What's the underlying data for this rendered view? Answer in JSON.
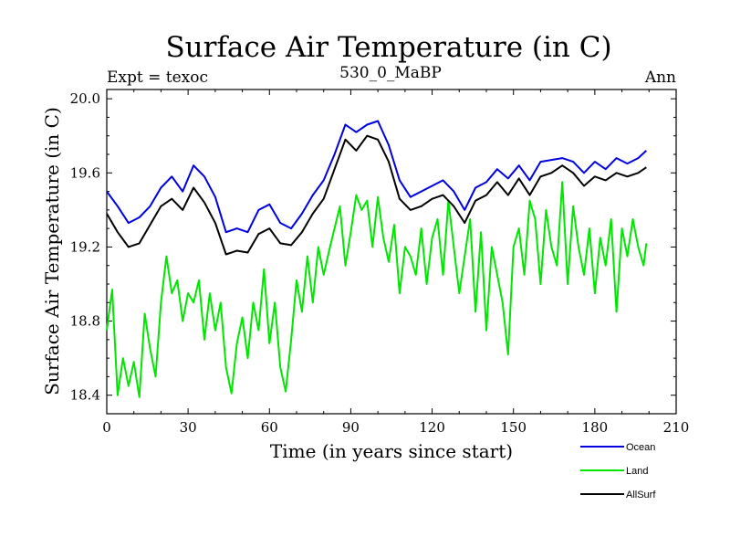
{
  "chart_data": {
    "type": "line",
    "title": "Surface Air Temperature (in C)",
    "subtitle_left": "Expt = texoc",
    "subtitle_center": "530_0_MaBP",
    "subtitle_right": "Ann",
    "xlabel": "Time (in years since start)",
    "ylabel": "Surface Air Temperature (in C)",
    "xlim": [
      0,
      210
    ],
    "ylim": [
      18.3,
      20.05
    ],
    "xticks": [
      0,
      30,
      60,
      90,
      120,
      150,
      180,
      210
    ],
    "xtick_labels": [
      "0",
      "30",
      "60",
      "90",
      "120",
      "150",
      "180",
      "210"
    ],
    "yticks": [
      18.4,
      18.8,
      19.2,
      19.6,
      20.0
    ],
    "ytick_labels": [
      "18.4",
      "18.8",
      "19.2",
      "19.6",
      "20.0"
    ],
    "legend_position": "bottom-right, outside plot",
    "series": [
      {
        "name": "Ocean",
        "color": "#0000e0",
        "x": [
          0,
          4,
          8,
          12,
          16,
          20,
          24,
          28,
          32,
          36,
          40,
          44,
          48,
          52,
          56,
          60,
          64,
          68,
          72,
          76,
          80,
          84,
          88,
          92,
          96,
          100,
          104,
          108,
          112,
          116,
          120,
          124,
          128,
          132,
          136,
          140,
          144,
          148,
          152,
          156,
          160,
          164,
          168,
          172,
          176,
          180,
          184,
          188,
          192,
          196,
          199
        ],
        "values": [
          19.5,
          19.42,
          19.33,
          19.36,
          19.42,
          19.52,
          19.58,
          19.5,
          19.64,
          19.58,
          19.47,
          19.28,
          19.3,
          19.28,
          19.4,
          19.43,
          19.33,
          19.3,
          19.38,
          19.48,
          19.56,
          19.7,
          19.86,
          19.82,
          19.86,
          19.88,
          19.75,
          19.56,
          19.47,
          19.5,
          19.53,
          19.56,
          19.5,
          19.4,
          19.52,
          19.55,
          19.62,
          19.57,
          19.64,
          19.56,
          19.66,
          19.67,
          19.68,
          19.66,
          19.6,
          19.66,
          19.62,
          19.68,
          19.65,
          19.68,
          19.72
        ]
      },
      {
        "name": "Land",
        "color": "#00e600",
        "x": [
          0,
          2,
          4,
          6,
          8,
          10,
          12,
          14,
          16,
          18,
          20,
          22,
          24,
          26,
          28,
          30,
          32,
          34,
          36,
          38,
          40,
          42,
          44,
          46,
          48,
          50,
          52,
          54,
          56,
          58,
          60,
          62,
          64,
          66,
          68,
          70,
          72,
          74,
          76,
          78,
          80,
          82,
          84,
          86,
          88,
          90,
          92,
          94,
          96,
          98,
          100,
          102,
          104,
          106,
          108,
          110,
          112,
          114,
          116,
          118,
          120,
          122,
          124,
          126,
          128,
          130,
          132,
          134,
          136,
          138,
          140,
          142,
          144,
          146,
          148,
          150,
          152,
          154,
          156,
          158,
          160,
          162,
          164,
          166,
          168,
          170,
          172,
          174,
          176,
          178,
          180,
          182,
          184,
          186,
          188,
          190,
          192,
          194,
          196,
          198,
          199
        ],
        "values": [
          18.75,
          18.97,
          18.4,
          18.6,
          18.45,
          18.58,
          18.39,
          18.84,
          18.65,
          18.5,
          18.9,
          19.15,
          18.95,
          19.02,
          18.8,
          18.95,
          18.9,
          19.02,
          18.7,
          18.95,
          18.75,
          18.9,
          18.55,
          18.41,
          18.68,
          18.82,
          18.6,
          18.9,
          18.75,
          19.08,
          18.68,
          18.9,
          18.55,
          18.42,
          18.7,
          19.02,
          18.85,
          19.15,
          18.9,
          19.2,
          19.05,
          19.18,
          19.3,
          19.42,
          19.1,
          19.28,
          19.48,
          19.4,
          19.45,
          19.2,
          19.47,
          19.25,
          19.12,
          19.32,
          18.95,
          19.2,
          19.15,
          19.05,
          19.3,
          19.0,
          19.25,
          19.35,
          19.05,
          19.45,
          19.2,
          18.95,
          19.15,
          19.35,
          18.85,
          19.28,
          18.75,
          19.2,
          19.05,
          18.9,
          18.62,
          19.2,
          19.3,
          19.05,
          19.45,
          19.35,
          19.0,
          19.4,
          19.2,
          19.1,
          19.55,
          19.0,
          19.42,
          19.2,
          19.05,
          19.3,
          18.95,
          19.25,
          19.1,
          19.35,
          18.85,
          19.3,
          19.15,
          19.35,
          19.2,
          19.1,
          19.22
        ]
      },
      {
        "name": "AllSurf",
        "color": "#000000",
        "x": [
          0,
          4,
          8,
          12,
          16,
          20,
          24,
          28,
          32,
          36,
          40,
          44,
          48,
          52,
          56,
          60,
          64,
          68,
          72,
          76,
          80,
          84,
          88,
          92,
          96,
          100,
          104,
          108,
          112,
          116,
          120,
          124,
          128,
          132,
          136,
          140,
          144,
          148,
          152,
          156,
          160,
          164,
          168,
          172,
          176,
          180,
          184,
          188,
          192,
          196,
          199
        ],
        "values": [
          19.38,
          19.28,
          19.2,
          19.22,
          19.32,
          19.42,
          19.46,
          19.4,
          19.52,
          19.44,
          19.33,
          19.16,
          19.18,
          19.17,
          19.27,
          19.3,
          19.22,
          19.21,
          19.28,
          19.38,
          19.46,
          19.62,
          19.78,
          19.72,
          19.8,
          19.78,
          19.66,
          19.46,
          19.4,
          19.42,
          19.46,
          19.48,
          19.42,
          19.33,
          19.45,
          19.48,
          19.55,
          19.48,
          19.57,
          19.48,
          19.58,
          19.6,
          19.64,
          19.6,
          19.53,
          19.58,
          19.56,
          19.6,
          19.58,
          19.6,
          19.63
        ]
      }
    ]
  }
}
